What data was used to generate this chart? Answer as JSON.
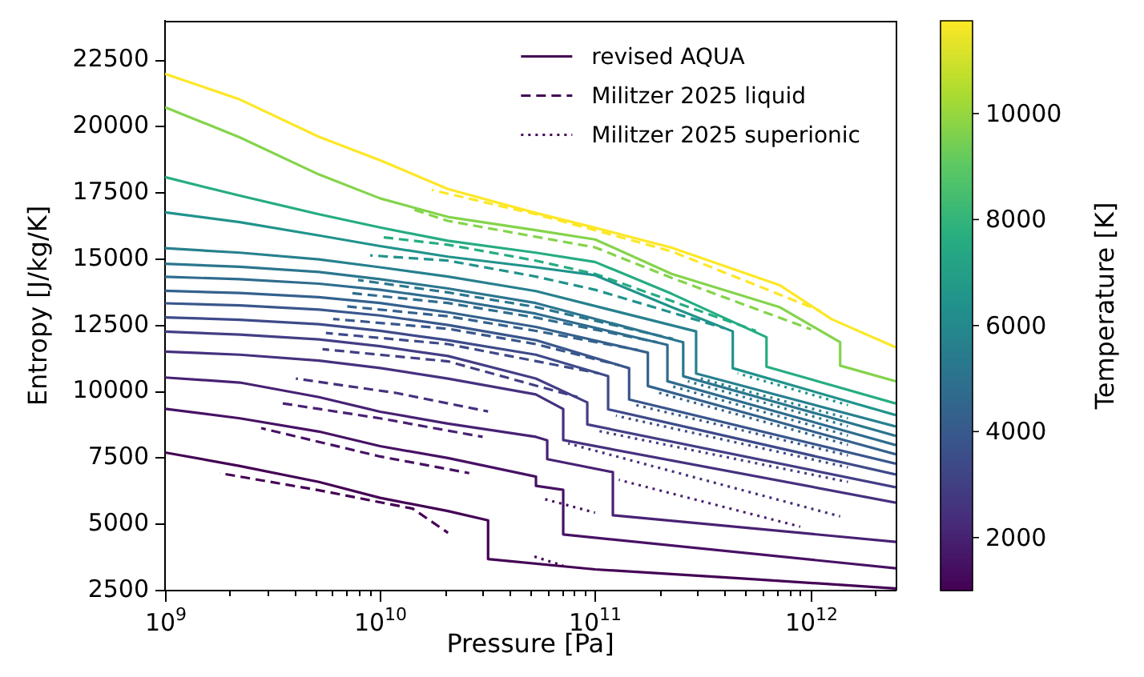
{
  "chart_data": {
    "type": "line",
    "xlabel": "Pressure [Pa]",
    "ylabel": "Entropy [J/kg/K]",
    "clabel": "Temperature [K]",
    "log": "x",
    "legend": "top right",
    "xlim": [
      1000000000.0,
      2500000000000.0
    ],
    "ylim": [
      2500,
      24000
    ],
    "xticks": [
      {
        "value": 1000000000.0,
        "label": "10$^{9}$"
      },
      {
        "value": 2000000000.0,
        "label": null
      },
      {
        "value": 3000000000.0,
        "label": null
      },
      {
        "value": 4000000000.0,
        "label": null
      },
      {
        "value": 5000000000.0,
        "label": null
      },
      {
        "value": 6000000000.0,
        "label": null
      },
      {
        "value": 7000000000.0,
        "label": null
      },
      {
        "value": 8000000000.0,
        "label": null
      },
      {
        "value": 9000000000.0,
        "label": null
      },
      {
        "value": 10000000000.0,
        "label": "10$^{10}$"
      },
      {
        "value": 20000000000.0,
        "label": null
      },
      {
        "value": 30000000000.0,
        "label": null
      },
      {
        "value": 40000000000.0,
        "label": null
      },
      {
        "value": 50000000000.0,
        "label": null
      },
      {
        "value": 60000000000.0,
        "label": null
      },
      {
        "value": 70000000000.0,
        "label": null
      },
      {
        "value": 80000000000.0,
        "label": null
      },
      {
        "value": 90000000000.0,
        "label": null
      },
      {
        "value": 100000000000.0,
        "label": "10$^{11}$"
      },
      {
        "value": 200000000000.0,
        "label": null
      },
      {
        "value": 300000000000.0,
        "label": null
      },
      {
        "value": 400000000000.0,
        "label": null
      },
      {
        "value": 500000000000.0,
        "label": null
      },
      {
        "value": 600000000000.0,
        "label": null
      },
      {
        "value": 700000000000.0,
        "label": null
      },
      {
        "value": 800000000000.0,
        "label": null
      },
      {
        "value": 900000000000.0,
        "label": null
      },
      {
        "value": 1000000000000.0,
        "label": "10$^{12}$"
      },
      {
        "value": 2000000000000.0,
        "label": null
      }
    ],
    "yticks": [
      2500,
      5000,
      7500,
      10000,
      12500,
      15000,
      17500,
      20000,
      22500
    ],
    "clim": [
      1000,
      11750
    ],
    "cticks": [
      2000,
      4000,
      6000,
      8000,
      10000
    ],
    "series": [
      {
        "name": "revised AQUA",
        "line_style": "solid",
        "color": "#440154",
        "x": [
          1000000000.0,
          2230000000.0,
          5200000000.0,
          10000000000.0,
          20700000000.0,
          31800000000.0,
          31800000000.0,
          100000000000.0,
          500000000000.0,
          2500000000000.0
        ],
        "values": [
          7710,
          7200,
          6600,
          6000,
          5500,
          5150,
          3690,
          3300,
          2950,
          2580
        ]
      },
      {
        "line_style": "solid",
        "color": "#471164",
        "x": [
          1000000000.0,
          2230000000.0,
          5200000000.0,
          10000000000.0,
          20700000000.0,
          53100000000.0,
          53100000000.0,
          71100000000.0,
          71100000000.0,
          2500000000000.0
        ],
        "values": [
          9360,
          9000,
          8500,
          7950,
          7500,
          6800,
          6450,
          6300,
          4620,
          3340
        ]
      },
      {
        "line_style": "solid",
        "color": "#482173",
        "x": [
          1000000000.0,
          2230000000.0,
          5200000000.0,
          10000000000.0,
          20700000000.0,
          53100000000.0,
          59900000000.0,
          59900000000.0,
          121000000000.0,
          121000000000.0,
          2500000000000.0
        ],
        "values": [
          10540,
          10350,
          9800,
          9250,
          8800,
          8300,
          8170,
          7460,
          6970,
          5340,
          4340
        ]
      },
      {
        "line_style": "solid",
        "color": "#46307e",
        "x": [
          1000000000.0,
          2230000000.0,
          5200000000.0,
          10000000000.0,
          20700000000.0,
          53000000000.0,
          71100000000.0,
          71100000000.0,
          2500000000000.0
        ],
        "values": [
          11520,
          11400,
          11180,
          10900,
          10500,
          9900,
          9350,
          8180,
          5820
        ]
      },
      {
        "line_style": "solid",
        "color": "#433e85",
        "x": [
          1000000000.0,
          2230000000.0,
          5200000000.0,
          10000000000.0,
          20700000000.0,
          53000000000.0,
          92000000000.0,
          92000000000.0,
          2500000000000.0
        ],
        "values": [
          12270,
          12160,
          11980,
          11720,
          11350,
          10500,
          9600,
          8770,
          6400
        ]
      },
      {
        "line_style": "solid",
        "color": "#3e4a89",
        "x": [
          1000000000.0,
          2230000000.0,
          5200000000.0,
          10000000000.0,
          20700000000.0,
          53000000000.0,
          115000000000.0,
          115000000000.0,
          2500000000000.0
        ],
        "values": [
          12810,
          12720,
          12550,
          12300,
          11950,
          11400,
          10590,
          9340,
          6880
        ]
      },
      {
        "line_style": "solid",
        "color": "#39568c",
        "x": [
          1000000000.0,
          2230000000.0,
          5200000000.0,
          10000000000.0,
          20700000000.0,
          53000000000.0,
          144000000000.0,
          144000000000.0,
          2500000000000.0
        ],
        "values": [
          13340,
          13260,
          13100,
          12880,
          12520,
          11950,
          10890,
          9710,
          7290
        ]
      },
      {
        "line_style": "solid",
        "color": "#34618d",
        "x": [
          1000000000.0,
          2230000000.0,
          5200000000.0,
          10000000000.0,
          20700000000.0,
          53000000000.0,
          176000000000.0,
          176000000000.0,
          2500000000000.0
        ],
        "values": [
          13810,
          13730,
          13570,
          13350,
          13000,
          12450,
          11480,
          10220,
          7640
        ]
      },
      {
        "line_style": "solid",
        "color": "#2f6c8e",
        "x": [
          1000000000.0,
          2230000000.0,
          5200000000.0,
          10000000000.0,
          20700000000.0,
          53000000000.0,
          217000000000.0,
          217000000000.0,
          2500000000000.0
        ],
        "values": [
          14340,
          14250,
          14080,
          13850,
          13500,
          12950,
          11770,
          10400,
          7990
        ]
      },
      {
        "line_style": "solid",
        "color": "#2b768e",
        "x": [
          1000000000.0,
          2230000000.0,
          5200000000.0,
          10000000000.0,
          20700000000.0,
          53000000000.0,
          257000000000.0,
          257000000000.0,
          2500000000000.0
        ],
        "values": [
          14830,
          14720,
          14520,
          14250,
          13900,
          13350,
          11870,
          10590,
          8340
        ]
      },
      {
        "line_style": "solid",
        "color": "#27808e",
        "x": [
          1000000000.0,
          2230000000.0,
          5200000000.0,
          10000000000.0,
          20700000000.0,
          53000000000.0,
          295000000000.0,
          295000000000.0,
          2500000000000.0
        ],
        "values": [
          15420,
          15250,
          15000,
          14700,
          14350,
          13800,
          12280,
          10690,
          8690
        ]
      },
      {
        "line_style": "solid",
        "color": "#20938c",
        "x": [
          1000000000.0,
          2230000000.0,
          5200000000.0,
          10000000000.0,
          20700000000.0,
          53000000000.0,
          100000000000.0,
          227000000000.0,
          437000000000.0,
          437000000000.0,
          2500000000000.0
        ],
        "values": [
          16770,
          16400,
          15900,
          15500,
          15100,
          14700,
          14400,
          13200,
          12280,
          10890,
          9120
        ]
      },
      {
        "line_style": "solid",
        "color": "#25ac82",
        "x": [
          1000000000.0,
          2230000000.0,
          5200000000.0,
          10000000000.0,
          20700000000.0,
          53000000000.0,
          100000000000.0,
          227000000000.0,
          627000000000.0,
          627000000000.0,
          2500000000000.0
        ],
        "values": [
          18100,
          17400,
          16700,
          16200,
          15700,
          15250,
          14900,
          13700,
          12060,
          10950,
          9560
        ]
      },
      {
        "line_style": "solid",
        "color": "#84d44b",
        "x": [
          1000000000.0,
          2230000000.0,
          5200000000.0,
          10000000000.0,
          20700000000.0,
          53000000000.0,
          100000000000.0,
          227000000000.0,
          720000000000.0,
          1380000000000.0,
          1380000000000.0,
          2500000000000.0
        ],
        "values": [
          20740,
          19600,
          18200,
          17300,
          16600,
          16100,
          15750,
          14450,
          13200,
          11870,
          10990,
          10400
        ]
      },
      {
        "line_style": "solid",
        "color": "#fde725",
        "x": [
          1000000000.0,
          2230000000.0,
          5200000000.0,
          10000000000.0,
          20700000000.0,
          53000000000.0,
          100000000000.0,
          227000000000.0,
          720000000000.0,
          1260000000000.0,
          2500000000000.0
        ],
        "values": [
          22000,
          21030,
          19620,
          18740,
          17650,
          16750,
          16190,
          15440,
          14030,
          12740,
          11680
        ]
      },
      {
        "name": "Militzer 2025 liquid",
        "line_style": "dashed",
        "color": "#440154",
        "x": [
          1800000000.0,
          5250000000.0,
          14200000000.0,
          20700000000.0
        ],
        "values": [
          6930,
          6280,
          5590,
          4680
        ]
      },
      {
        "line_style": "dashed",
        "color": "#471164",
        "x": [
          2800000000.0,
          10000000000.0,
          26000000000.0
        ],
        "values": [
          8630,
          7560,
          6930
        ]
      },
      {
        "line_style": "dashed",
        "color": "#482173",
        "x": [
          3420000000.0,
          10000000000.0,
          30000000000.0
        ],
        "values": [
          9580,
          9000,
          8300
        ]
      },
      {
        "line_style": "dashed",
        "color": "#46307e",
        "x": [
          4060000000.0,
          12000000000.0,
          31800000000.0
        ],
        "values": [
          10500,
          9950,
          9260
        ]
      },
      {
        "line_style": "dashed",
        "color": "#433e85",
        "x": [
          5400000000.0,
          20700000000.0,
          83000000000.0
        ],
        "values": [
          11610,
          11150,
          9800
        ]
      },
      {
        "line_style": "dashed",
        "color": "#3e4a89",
        "x": [
          5600000000.0,
          20700000000.0,
          104000000000.0
        ],
        "values": [
          12220,
          11800,
          10700
        ]
      },
      {
        "line_style": "dashed",
        "color": "#39568c",
        "x": [
          6050000000.0,
          20700000000.0,
          53000000000.0,
          130000000000.0
        ],
        "values": [
          12750,
          12380,
          11800,
          11000
        ]
      },
      {
        "line_style": "dashed",
        "color": "#34618d",
        "x": [
          6700000000.0,
          20700000000.0,
          53000000000.0,
          158000000000.0
        ],
        "values": [
          13240,
          12850,
          12300,
          11580
        ]
      },
      {
        "line_style": "dashed",
        "color": "#2f6c8e",
        "x": [
          7300000000.0,
          20700000000.0,
          53000000000.0,
          195000000000.0
        ],
        "values": [
          13730,
          13350,
          12800,
          11870
        ]
      },
      {
        "line_style": "dashed",
        "color": "#2b768e",
        "x": [
          7900000000.0,
          20700000000.0,
          53000000000.0,
          230000000000.0
        ],
        "values": [
          14220,
          13750,
          13200,
          12000
        ]
      },
      {
        "line_style": "dashed",
        "color": "#20938c",
        "x": [
          9000000000.0,
          20700000000.0,
          53000000000.0,
          100000000000.0,
          400000000000.0
        ],
        "values": [
          15150,
          14950,
          14350,
          13850,
          12400
        ]
      },
      {
        "line_style": "dashed",
        "color": "#25ac82",
        "x": [
          10400000000.0,
          20700000000.0,
          53000000000.0,
          100000000000.0,
          560000000000.0
        ],
        "values": [
          15830,
          15550,
          14950,
          14450,
          12300
        ]
      },
      {
        "line_style": "dashed",
        "color": "#84d44b",
        "x": [
          13900000000.0,
          20700000000.0,
          53000000000.0,
          100000000000.0,
          227000000000.0,
          1010000000000.0
        ],
        "values": [
          16910,
          16450,
          15850,
          15450,
          14300,
          12360
        ]
      },
      {
        "line_style": "dashed",
        "color": "#fde725",
        "x": [
          17400000000.0,
          53000000000.0,
          100000000000.0,
          227000000000.0,
          1120000000000.0
        ],
        "values": [
          17620,
          16700,
          16100,
          15300,
          13050
        ]
      },
      {
        "name": "Militzer 2025 superionic",
        "line_style": "dotted",
        "color": "#440154",
        "x": [
          52000000000.0,
          71000000000.0
        ],
        "values": [
          3790,
          3440
        ]
      },
      {
        "line_style": "dotted",
        "color": "#471164",
        "x": [
          56000000000.0,
          100000000000.0
        ],
        "values": [
          5990,
          5440
        ]
      },
      {
        "line_style": "dotted",
        "color": "#482173",
        "x": [
          129000000000.0,
          900000000000.0
        ],
        "values": [
          6680,
          4910
        ]
      },
      {
        "line_style": "dotted",
        "color": "#46307e",
        "x": [
          75000000000.0,
          1380000000000.0
        ],
        "values": [
          8050,
          5300
        ]
      },
      {
        "line_style": "dotted",
        "color": "#433e85",
        "x": [
          100000000000.0,
          1500000000000.0
        ],
        "values": [
          8550,
          6600
        ]
      },
      {
        "line_style": "dotted",
        "color": "#3e4a89",
        "x": [
          125000000000.0,
          1500000000000.0
        ],
        "values": [
          9100,
          7150
        ]
      },
      {
        "line_style": "dotted",
        "color": "#39568c",
        "x": [
          155000000000.0,
          1500000000000.0
        ],
        "values": [
          9500,
          7600
        ]
      },
      {
        "line_style": "dotted",
        "color": "#34618d",
        "x": [
          190000000000.0,
          1500000000000.0
        ],
        "values": [
          10000,
          8000
        ]
      },
      {
        "line_style": "dotted",
        "color": "#2f6c8e",
        "x": [
          230000000000.0,
          1500000000000.0
        ],
        "values": [
          10200,
          8350
        ]
      },
      {
        "line_style": "dotted",
        "color": "#2b768e",
        "x": [
          270000000000.0,
          1500000000000.0
        ],
        "values": [
          10400,
          8700
        ]
      },
      {
        "line_style": "dotted",
        "color": "#27808e",
        "x": [
          310000000000.0,
          1500000000000.0
        ],
        "values": [
          10500,
          9000
        ]
      },
      {
        "line_style": "dotted",
        "color": "#20938c",
        "x": [
          460000000000.0,
          1500000000000.0
        ],
        "values": [
          10700,
          9500
        ]
      }
    ]
  }
}
